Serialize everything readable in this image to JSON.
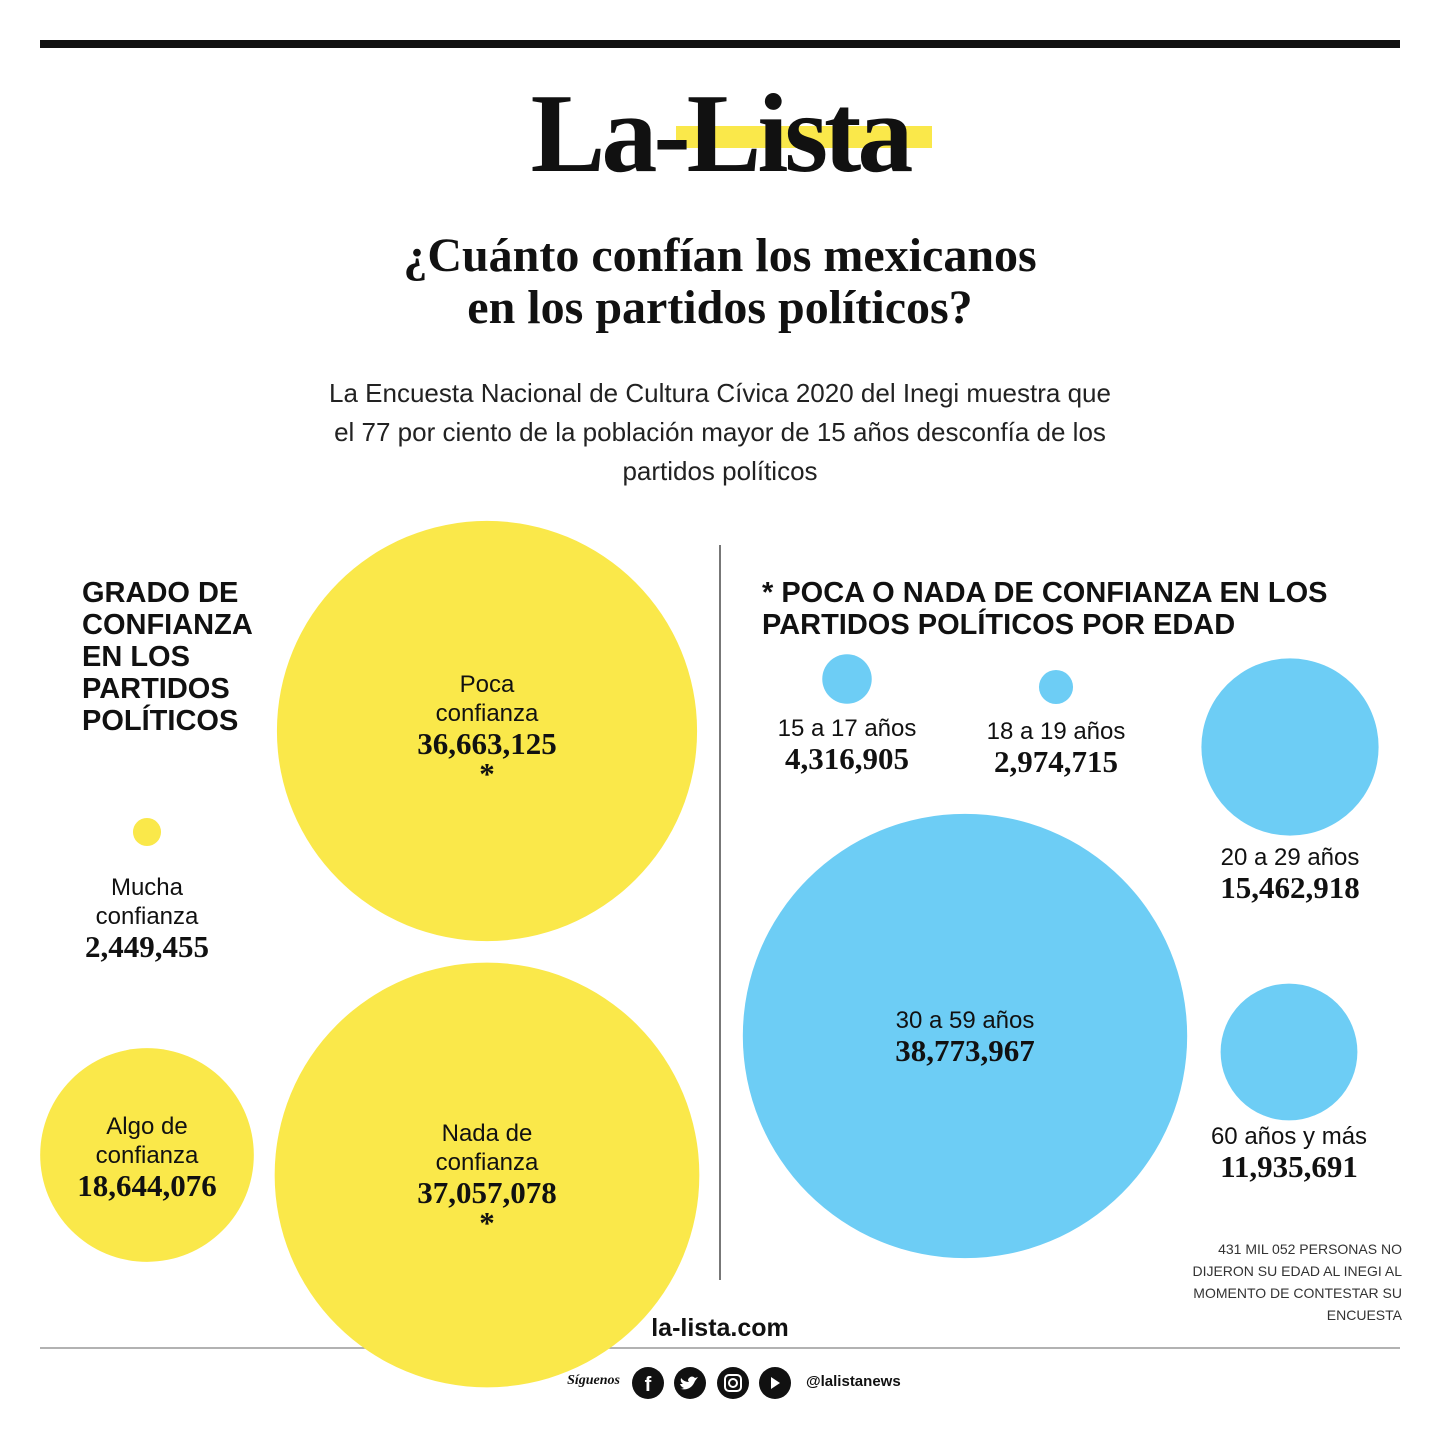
{
  "logo": "La-Lista",
  "title": [
    "¿Cuánto confían los mexicanos",
    "en los partidos políticos?"
  ],
  "subtitle": "La Encuesta Nacional de Cultura Cívica 2020 del Inegi muestra que el 77 por ciento de la población mayor de 15 años desconfía de los partidos políticos",
  "chart_data": [
    {
      "type": "bubble",
      "title": "GRADO DE CONFIANZA EN LOS PARTIDOS POLÍTICOS",
      "color": "#fae84a",
      "categories": [
        "Mucha confianza",
        "Algo de confianza",
        "Poca confianza",
        "Nada de confianza"
      ],
      "values": [
        2449455,
        18644076,
        36663125,
        37057078
      ],
      "value_labels": [
        "2,449,455",
        "18,644,076",
        "36,663,125",
        "37,057,078"
      ],
      "value_notes": [
        null,
        null,
        "*",
        "*"
      ]
    },
    {
      "type": "bubble",
      "title": "* POCA O NADA DE CONFIANZA EN LOS PARTIDOS POLÍTICOS POR EDAD",
      "color": "#6dcdf5",
      "categories": [
        "15 a 17 años",
        "18 a 19 años",
        "20 a 29 años",
        "30 a 59 años",
        "60 años y más"
      ],
      "values": [
        4316905,
        2974715,
        15462918,
        38773967,
        11935691
      ],
      "value_labels": [
        "4,316,905",
        "2,974,715",
        "15,462,918",
        "38,773,967",
        "11,935,691"
      ],
      "note": "431 MIL 052 PERSONAS NO DIJERON SU EDAD AL INEGI AL MOMENTO DE CONTESTAR SU ENCUESTA"
    }
  ],
  "footer": {
    "website": "la-lista.com",
    "follow": "Síguenos",
    "handle": "@lalistanews"
  }
}
